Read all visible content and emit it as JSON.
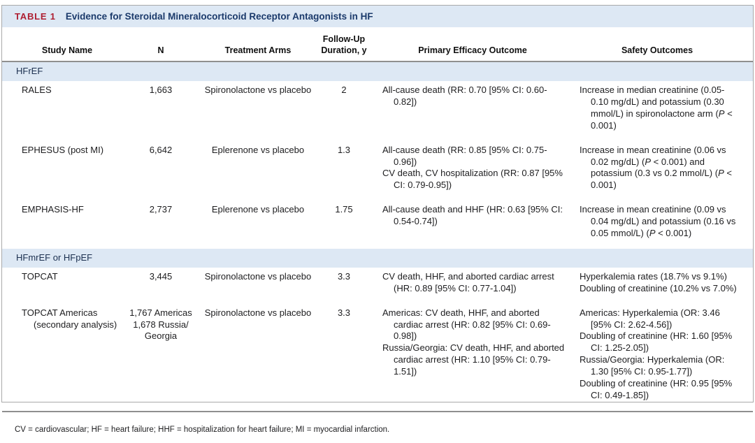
{
  "colors": {
    "accent_red": "#ae1e31",
    "navy": "#1b3a6b",
    "band_blue": "#dde8f4",
    "border_gray": "#a9a9a9"
  },
  "table": {
    "label": "TABLE 1",
    "title": "Evidence for Steroidal Mineralocorticoid Receptor Antagonists in HF",
    "columns": [
      "Study Name",
      "N",
      "Treatment Arms",
      "Follow-Up\nDuration, y",
      "Primary Efficacy Outcome",
      "Safety Outcomes"
    ],
    "sections": [
      {
        "header": "HFrEF",
        "rows": [
          {
            "study": "RALES",
            "n": "1,663",
            "treatment": "Spironolactone vs placebo",
            "followup": "2",
            "efficacy": [
              "All-cause death (RR: 0.70 [95% CI: 0.60-0.82])"
            ],
            "safety": [
              "Increase in median creatinine (0.05-0.10 mg/dL) and potassium (0.30 mmol/L) in spironolactone arm (P < 0.001)"
            ]
          },
          {
            "study": "EPHESUS (post MI)",
            "n": "6,642",
            "treatment": "Eplerenone vs placebo",
            "followup": "1.3",
            "efficacy": [
              "All-cause death (RR: 0.85 [95% CI: 0.75-0.96])",
              "CV death, CV hospitalization (RR: 0.87 [95% CI: 0.79-0.95])"
            ],
            "safety": [
              "Increase in mean creatinine (0.06 vs 0.02 mg/dL) (P < 0.001) and potassium (0.3 vs 0.2 mmol/L) (P < 0.001)"
            ]
          },
          {
            "study": "EMPHASIS-HF",
            "n": "2,737",
            "treatment": "Eplerenone vs placebo",
            "followup": "1.75",
            "efficacy": [
              "All-cause death and HHF (HR: 0.63 [95% CI: 0.54-0.74])"
            ],
            "safety": [
              "Increase in mean creatinine (0.09 vs 0.04 mg/dL) and potassium (0.16 vs 0.05 mmol/L) (P < 0.001)"
            ]
          }
        ]
      },
      {
        "header": "HFmrEF or HFpEF",
        "rows": [
          {
            "study": "TOPCAT",
            "n": "3,445",
            "treatment": "Spironolactone vs placebo",
            "followup": "3.3",
            "efficacy": [
              "CV death, HHF, and aborted cardiac arrest (HR: 0.89 [95% CI: 0.77-1.04])"
            ],
            "safety": [
              "Hyperkalemia rates (18.7% vs 9.1%)",
              "Doubling of creatinine (10.2% vs 7.0%)"
            ]
          },
          {
            "study": "TOPCAT Americas (secondary analysis)",
            "n": "1,767 Americas\n1,678 Russia/\nGeorgia",
            "treatment": "Spironolactone vs placebo",
            "followup": "3.3",
            "efficacy": [
              "Americas: CV death, HHF, and aborted cardiac arrest (HR: 0.82 [95% CI: 0.69-0.98])",
              "Russia/Georgia: CV death, HHF, and aborted cardiac arrest (HR: 1.10 [95% CI: 0.79-1.51])"
            ],
            "safety": [
              "Americas: Hyperkalemia (OR: 3.46 [95% CI: 2.62-4.56])",
              "Doubling of creatinine (HR: 1.60 [95% CI: 1.25-2.05])",
              "Russia/Georgia: Hyperkalemia (OR: 1.30 [95% CI: 0.95-1.77])",
              "Doubling of creatinine (HR: 0.95 [95% CI: 0.49-1.85])"
            ]
          }
        ]
      }
    ],
    "footnote": "CV = cardiovascular; HF = heart failure; HHF = hospitalization for heart failure; MI = myocardial infarction."
  }
}
